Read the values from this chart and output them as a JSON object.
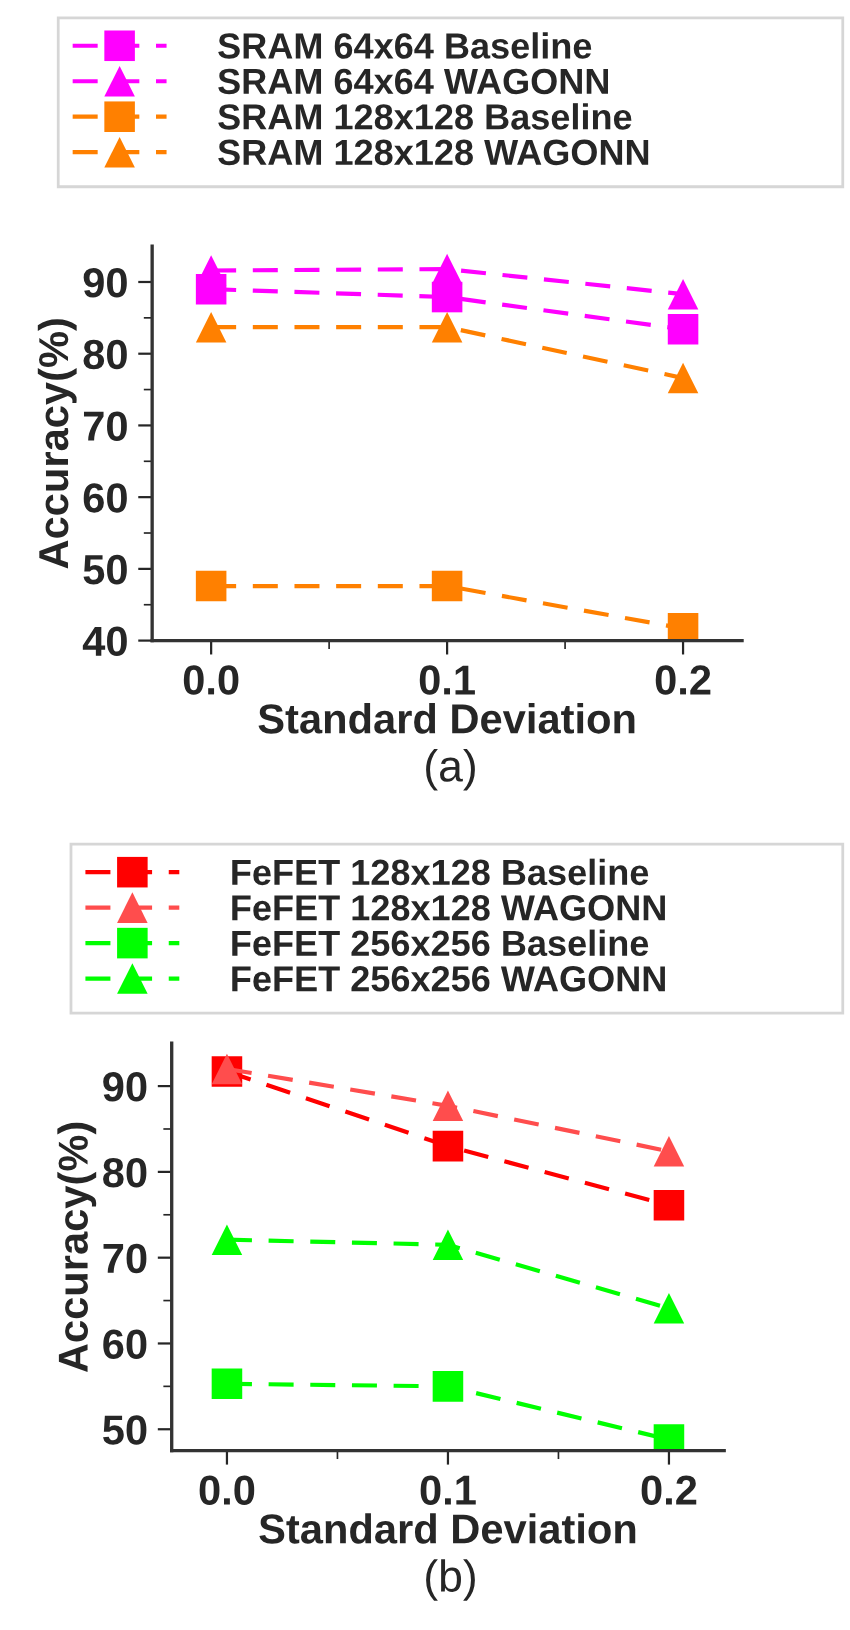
{
  "chart_data": [
    {
      "type": "line",
      "xlabel": "Standard Deviation",
      "ylabel": "Accuracy(%)",
      "x": [
        0.0,
        0.1,
        0.2
      ],
      "xlim": [
        -0.025,
        0.225
      ],
      "xticks": [
        {
          "value": 0.0,
          "label": "0.0"
        },
        {
          "value": 0.05,
          "label": null
        },
        {
          "value": 0.1,
          "label": "0.1"
        },
        {
          "value": 0.15,
          "label": null
        },
        {
          "value": 0.2,
          "label": "0.2"
        }
      ],
      "ylim": [
        40,
        95
      ],
      "yticks": [
        40,
        {
          "value": 45,
          "label": null
        },
        50,
        {
          "value": 55,
          "label": null
        },
        60,
        {
          "value": 65,
          "label": null
        },
        70,
        {
          "value": 75,
          "label": null
        },
        80,
        {
          "value": 85,
          "label": null
        },
        90
      ],
      "legend": "top",
      "line_style": "dashed",
      "grid": false,
      "annotations": [
        "(a)"
      ],
      "series": [
        {
          "name": "SRAM 64x64 Baseline",
          "color": "#ff00ff",
          "marker": "square",
          "values": [
            89.0,
            87.9,
            83.4
          ]
        },
        {
          "name": "SRAM 64x64 WAGONN",
          "color": "#ff00ff",
          "marker": "triangle",
          "values": [
            91.6,
            91.8,
            88.3
          ]
        },
        {
          "name": "SRAM 128x128 Baseline",
          "color": "#ff8000",
          "marker": "square",
          "values": [
            47.6,
            47.6,
            41.7
          ]
        },
        {
          "name": "SRAM 128x128 WAGONN",
          "color": "#ff8000",
          "marker": "triangle",
          "values": [
            83.7,
            83.7,
            76.6
          ]
        }
      ]
    },
    {
      "type": "line",
      "xlabel": "Standard Deviation",
      "ylabel": "Accuracy(%)",
      "x": [
        0.0,
        0.1,
        0.2
      ],
      "xlim": [
        -0.025,
        0.225
      ],
      "xticks": [
        {
          "value": 0.0,
          "label": "0.0"
        },
        {
          "value": 0.05,
          "label": null
        },
        {
          "value": 0.1,
          "label": "0.1"
        },
        {
          "value": 0.15,
          "label": null
        },
        {
          "value": 0.2,
          "label": "0.2"
        }
      ],
      "ylim": [
        47.5,
        95
      ],
      "yticks": [
        50,
        {
          "value": 55,
          "label": null
        },
        60,
        {
          "value": 65,
          "label": null
        },
        70,
        {
          "value": 75,
          "label": null
        },
        80,
        {
          "value": 85,
          "label": null
        },
        90
      ],
      "legend": "top",
      "line_style": "dashed",
      "grid": false,
      "annotations": [
        "(b)"
      ],
      "series": [
        {
          "name": "FeFET 128x128 Baseline",
          "color": "#ff0000",
          "marker": "square",
          "values": [
            91.7,
            83.0,
            76.1
          ]
        },
        {
          "name": "FeFET 128x128 WAGONN",
          "color": "#ff4d4d",
          "marker": "triangle",
          "values": [
            92.0,
            87.7,
            82.4
          ]
        },
        {
          "name": "FeFET 256x256 Baseline",
          "color": "#00ff00",
          "marker": "square",
          "values": [
            55.3,
            55.0,
            48.8
          ]
        },
        {
          "name": "FeFET 256x256 WAGONN",
          "color": "#00ff00",
          "marker": "triangle",
          "values": [
            72.1,
            71.5,
            64.1
          ]
        }
      ]
    }
  ]
}
